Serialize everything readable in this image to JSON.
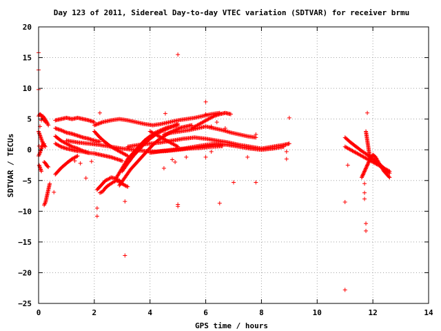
{
  "chart_data": {
    "type": "scatter",
    "title": "Day 123 of 2011, Sidereal Day-to-day VTEC variation (SDTVAR) for receiver brmu",
    "xlabel": "GPS time / hours",
    "ylabel": "SDTVAR / TECUs",
    "xlim": [
      0,
      14
    ],
    "ylim": [
      -25,
      20
    ],
    "xticks": [
      0,
      2,
      4,
      6,
      8,
      10,
      12,
      14
    ],
    "yticks": [
      -25,
      -20,
      -15,
      -10,
      -5,
      0,
      5,
      10,
      15,
      20
    ],
    "xtick_labels": [
      "0",
      "2",
      "4",
      "6",
      "8",
      "10",
      "12",
      "14"
    ],
    "ytick_labels": [
      "−25",
      "−20",
      "−15",
      "−10",
      "−5",
      "0",
      "5",
      "10",
      "15",
      "20"
    ],
    "grid": true,
    "marker": "+",
    "color": "#ff0000",
    "tracks": [
      {
        "x": [
          0.0,
          0.05,
          0.1,
          0.15,
          0.2,
          0.25
        ],
        "y": [
          5.5,
          5.8,
          5.6,
          5.2,
          4.8,
          4.5
        ]
      },
      {
        "x": [
          0.0,
          0.08,
          0.16,
          0.24
        ],
        "y": [
          3.0,
          2.0,
          1.0,
          0.5
        ]
      },
      {
        "x": [
          0.0,
          0.05,
          0.1,
          0.15,
          0.2
        ],
        "y": [
          -1.0,
          -0.5,
          0.2,
          0.8,
          1.0
        ]
      },
      {
        "x": [
          0.02,
          0.06,
          0.1
        ],
        "y": [
          -2.5,
          -3.0,
          -3.5
        ]
      },
      {
        "x": [
          0.2,
          0.25,
          0.3,
          0.35,
          0.4
        ],
        "y": [
          -9.0,
          -8.5,
          -7.5,
          -6.5,
          -5.5
        ]
      },
      {
        "x": [
          0.2,
          0.25,
          0.3,
          0.35
        ],
        "y": [
          -2.0,
          -2.2,
          -2.6,
          -2.8
        ]
      },
      {
        "x": [
          0.15,
          0.2,
          0.25,
          0.3,
          0.35
        ],
        "y": [
          5.5,
          5.2,
          4.8,
          4.5,
          4.0
        ]
      },
      {
        "x": [
          0.6,
          0.8,
          1.0,
          1.2,
          1.4,
          1.6,
          1.8,
          2.0
        ],
        "y": [
          4.8,
          5.0,
          5.2,
          5.0,
          5.2,
          5.0,
          4.8,
          4.5
        ]
      },
      {
        "x": [
          0.6,
          0.8,
          1.0,
          1.2,
          1.4,
          1.6,
          1.8,
          2.0,
          2.2
        ],
        "y": [
          3.5,
          3.2,
          2.8,
          2.6,
          2.3,
          2.0,
          1.8,
          1.5,
          1.3
        ]
      },
      {
        "x": [
          0.6,
          0.8,
          1.0,
          1.2,
          1.4,
          1.6,
          1.8
        ],
        "y": [
          2.2,
          1.5,
          1.0,
          0.5,
          0.2,
          -0.2,
          -0.5
        ]
      },
      {
        "x": [
          0.6,
          0.8,
          1.0,
          1.2,
          1.4,
          1.6,
          1.8,
          2.0,
          2.2,
          2.4,
          2.6,
          2.8,
          3.0
        ],
        "y": [
          1.0,
          0.5,
          0.2,
          0.0,
          -0.2,
          -0.3,
          -0.5,
          -0.6,
          -0.8,
          -1.0,
          -1.2,
          -1.5,
          -1.8
        ]
      },
      {
        "x": [
          0.6,
          0.8,
          1.0,
          1.2,
          1.4
        ],
        "y": [
          -4.0,
          -3.0,
          -2.2,
          -1.5,
          -1.0
        ]
      },
      {
        "x": [
          1.0,
          1.4,
          1.8,
          2.2,
          2.6,
          3.0,
          3.4,
          3.8,
          4.2,
          4.6,
          5.0,
          5.4,
          5.8,
          6.2,
          6.6
        ],
        "y": [
          1.5,
          1.2,
          1.0,
          0.8,
          0.5,
          0.2,
          0.0,
          -0.2,
          -0.3,
          -0.2,
          0.0,
          0.2,
          0.3,
          0.5,
          0.6
        ]
      },
      {
        "x": [
          2.0,
          2.3,
          2.6,
          2.9,
          3.2,
          3.5,
          3.8,
          4.1,
          4.4,
          4.7,
          5.0,
          5.3,
          5.6,
          5.9,
          6.2,
          6.5
        ],
        "y": [
          4.0,
          4.5,
          4.8,
          5.0,
          4.8,
          4.5,
          4.2,
          4.0,
          4.2,
          4.5,
          4.8,
          5.0,
          5.2,
          5.5,
          5.8,
          6.0
        ]
      },
      {
        "x": [
          2.0,
          2.2,
          2.4,
          2.6,
          2.8,
          3.0,
          3.2
        ],
        "y": [
          3.0,
          2.0,
          1.2,
          0.5,
          0.0,
          -0.5,
          -1.0
        ]
      },
      {
        "x": [
          2.1,
          2.2,
          2.3,
          2.4,
          2.5,
          2.6,
          2.7,
          2.8,
          2.9,
          3.0
        ],
        "y": [
          -6.5,
          -6.0,
          -5.5,
          -5.0,
          -4.8,
          -4.5,
          -4.6,
          -4.8,
          -5.0,
          -5.5
        ]
      },
      {
        "x": [
          2.2,
          2.3,
          2.4,
          2.5,
          2.6,
          2.7,
          2.8,
          2.9,
          3.0,
          3.1,
          3.2
        ],
        "y": [
          -7.0,
          -6.8,
          -6.2,
          -5.8,
          -5.5,
          -5.2,
          -5.0,
          -5.2,
          -5.5,
          -5.8,
          -6.0
        ]
      },
      {
        "x": [
          2.8,
          3.0,
          3.2,
          3.4,
          3.6,
          3.8,
          4.0,
          4.2,
          4.4,
          4.6,
          4.8,
          5.0
        ],
        "y": [
          -4.5,
          -3.0,
          -1.5,
          -0.5,
          0.5,
          1.5,
          2.2,
          2.8,
          3.2,
          3.6,
          3.8,
          4.0
        ]
      },
      {
        "x": [
          2.9,
          3.1,
          3.3,
          3.5,
          3.7,
          3.9,
          4.1,
          4.3,
          4.5,
          4.7,
          4.9,
          5.1,
          5.3,
          5.5
        ],
        "y": [
          -5.8,
          -4.5,
          -3.2,
          -2.2,
          -1.2,
          -0.2,
          0.8,
          1.6,
          2.2,
          2.8,
          3.2,
          3.6,
          3.8,
          4.0
        ]
      },
      {
        "x": [
          3.0,
          3.2,
          3.4,
          3.6,
          3.8,
          4.0,
          4.2,
          4.4,
          4.6,
          4.8,
          5.0
        ],
        "y": [
          -3.5,
          -2.2,
          -1.0,
          0.0,
          1.0,
          1.8,
          2.5,
          3.0,
          3.4,
          3.8,
          4.2
        ]
      },
      {
        "x": [
          3.2,
          3.6,
          4.0,
          4.4,
          4.8,
          5.2,
          5.6,
          6.0,
          6.4,
          6.8,
          7.2,
          7.6,
          8.0,
          8.4,
          8.8,
          9.0
        ],
        "y": [
          0.5,
          0.8,
          1.0,
          1.2,
          1.5,
          1.8,
          2.0,
          1.8,
          1.5,
          1.2,
          0.8,
          0.5,
          0.2,
          0.5,
          0.8,
          1.0
        ]
      },
      {
        "x": [
          4.0,
          4.4,
          4.8,
          5.2,
          5.6,
          6.0,
          6.4,
          6.8,
          7.2,
          7.6,
          8.0,
          8.4,
          8.8
        ],
        "y": [
          -0.5,
          -0.2,
          0.0,
          0.2,
          0.5,
          0.8,
          1.0,
          0.8,
          0.5,
          0.2,
          0.0,
          0.2,
          0.5
        ]
      },
      {
        "x": [
          4.5,
          4.8,
          5.1,
          5.4,
          5.7,
          6.0,
          6.3,
          6.6,
          6.9,
          7.2,
          7.5,
          7.8
        ],
        "y": [
          2.5,
          2.8,
          3.0,
          3.2,
          3.5,
          3.8,
          3.5,
          3.2,
          2.8,
          2.5,
          2.2,
          2.0
        ]
      },
      {
        "x": [
          5.5,
          5.7,
          5.9,
          6.1,
          6.3,
          6.5,
          6.7,
          6.9
        ],
        "y": [
          3.5,
          4.0,
          4.5,
          5.0,
          5.5,
          5.8,
          6.0,
          5.8
        ]
      },
      {
        "x": [
          4.0,
          4.2,
          4.4,
          4.6,
          4.8,
          5.0
        ],
        "y": [
          3.0,
          2.5,
          2.0,
          1.5,
          1.0,
          0.5
        ]
      },
      {
        "x": [
          11.0,
          11.2,
          11.4,
          11.6,
          11.8,
          12.0,
          12.2,
          12.4,
          12.6
        ],
        "y": [
          2.0,
          1.2,
          0.5,
          -0.2,
          -0.8,
          -1.5,
          -2.2,
          -3.0,
          -3.8
        ]
      },
      {
        "x": [
          11.0,
          11.2,
          11.4,
          11.6,
          11.8,
          12.0,
          12.2,
          12.4,
          12.6
        ],
        "y": [
          0.5,
          0.0,
          -0.5,
          -1.0,
          -1.5,
          -2.0,
          -2.5,
          -3.0,
          -3.5
        ]
      },
      {
        "x": [
          11.6,
          11.7,
          11.8,
          11.9,
          12.0,
          12.1,
          12.2,
          12.3,
          12.4,
          12.5,
          12.6
        ],
        "y": [
          -4.5,
          -3.5,
          -2.5,
          -1.5,
          -0.8,
          -1.2,
          -2.0,
          -2.8,
          -3.5,
          -4.0,
          -4.5
        ]
      },
      {
        "x": [
          11.75,
          11.8,
          11.85,
          11.9
        ],
        "y": [
          3.0,
          1.5,
          0.0,
          -1.5
        ]
      }
    ],
    "scatter_points": [
      {
        "x": 0.0,
        "y": 15.8
      },
      {
        "x": 0.0,
        "y": 13.0
      },
      {
        "x": 0.0,
        "y": 9.8
      },
      {
        "x": 5.0,
        "y": 15.5
      },
      {
        "x": 6.0,
        "y": 7.8
      },
      {
        "x": 6.0,
        "y": 5.8
      },
      {
        "x": 2.2,
        "y": 6.0
      },
      {
        "x": 11.8,
        "y": 6.0
      },
      {
        "x": 9.0,
        "y": 5.2
      },
      {
        "x": 3.1,
        "y": -8.4
      },
      {
        "x": 3.1,
        "y": -17.2
      },
      {
        "x": 5.0,
        "y": -8.9
      },
      {
        "x": 5.0,
        "y": -9.2
      },
      {
        "x": 6.5,
        "y": -8.7
      },
      {
        "x": 7.0,
        "y": -5.3
      },
      {
        "x": 7.8,
        "y": -5.3
      },
      {
        "x": 2.1,
        "y": -9.5
      },
      {
        "x": 2.1,
        "y": -10.8
      },
      {
        "x": 11.0,
        "y": -8.5
      },
      {
        "x": 11.0,
        "y": -22.8
      },
      {
        "x": 11.75,
        "y": -12.0
      },
      {
        "x": 11.75,
        "y": -13.2
      },
      {
        "x": 11.7,
        "y": -8.0
      },
      {
        "x": 11.7,
        "y": -7.0
      },
      {
        "x": 11.7,
        "y": -5.5
      },
      {
        "x": 11.1,
        "y": -2.5
      },
      {
        "x": 0.1,
        "y": 4.8
      },
      {
        "x": 0.05,
        "y": 3.8
      },
      {
        "x": 0.02,
        "y": 0.6
      },
      {
        "x": 0.55,
        "y": -6.9
      },
      {
        "x": 1.7,
        "y": -4.6
      },
      {
        "x": 1.9,
        "y": -1.9
      },
      {
        "x": 4.8,
        "y": -1.6
      },
      {
        "x": 4.5,
        "y": -3.0
      },
      {
        "x": 4.9,
        "y": -2.0
      },
      {
        "x": 6.0,
        "y": -1.2
      },
      {
        "x": 6.2,
        "y": -0.3
      },
      {
        "x": 7.5,
        "y": -1.2
      },
      {
        "x": 7.8,
        "y": 2.5
      },
      {
        "x": 8.9,
        "y": -1.5
      },
      {
        "x": 8.9,
        "y": -0.3
      },
      {
        "x": 6.2,
        "y": 3.8
      },
      {
        "x": 6.4,
        "y": 4.5
      },
      {
        "x": 1.3,
        "y": -1.8
      },
      {
        "x": 1.5,
        "y": -2.2
      },
      {
        "x": 4.55,
        "y": 5.9
      },
      {
        "x": 6.7,
        "y": 3.5
      },
      {
        "x": 5.3,
        "y": -1.2
      }
    ]
  }
}
